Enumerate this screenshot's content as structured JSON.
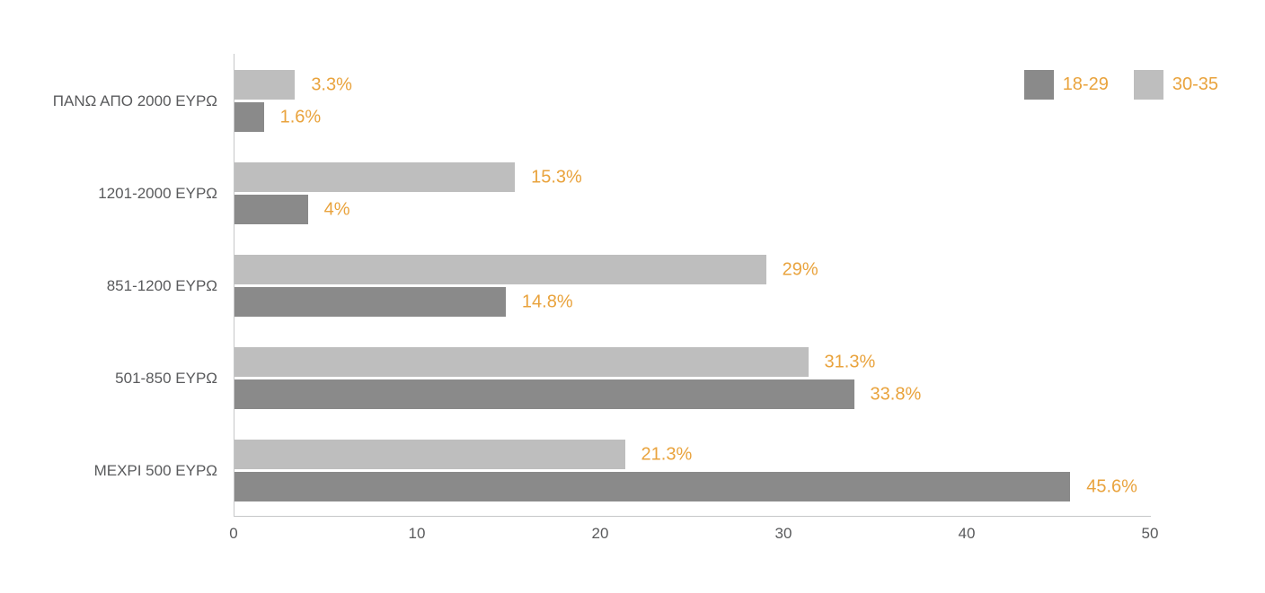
{
  "chart_data": {
    "type": "bar",
    "orientation": "horizontal",
    "title": "",
    "xlabel": "",
    "ylabel": "",
    "xlim": [
      0,
      50
    ],
    "x_ticks": [
      "0",
      "10",
      "20",
      "30",
      "40",
      "50"
    ],
    "grid": false,
    "legend_position": "top-right",
    "categories": [
      "ΠΑΝΩ ΑΠΟ 2000 ΕΥΡΩ",
      "1201-2000 ΕΥΡΩ",
      "851-1200 ΕΥΡΩ",
      "501-850 ΕΥΡΩ",
      "ΜΕΧΡΙ 500 ΕΥΡΩ"
    ],
    "series": [
      {
        "name": "30-35",
        "color": "#bebebe",
        "values": [
          3.3,
          15.3,
          29,
          31.3,
          21.3
        ],
        "labels": [
          "3.3%",
          "15.3%",
          "29%",
          "31.3%",
          "21.3%"
        ]
      },
      {
        "name": "18-29",
        "color": "#8a8a8a",
        "values": [
          1.6,
          4,
          14.8,
          33.8,
          45.6
        ],
        "labels": [
          "1.6%",
          "4%",
          "14.8%",
          "33.8%",
          "45.6%"
        ]
      }
    ],
    "legend": [
      {
        "label": "18-29",
        "color": "#8a8a8a"
      },
      {
        "label": "30-35",
        "color": "#bebebe"
      }
    ],
    "colors": {
      "value_label": "#e9a33d",
      "axis_text": "#595a5c",
      "axis_line": "#c6c7c8"
    }
  }
}
